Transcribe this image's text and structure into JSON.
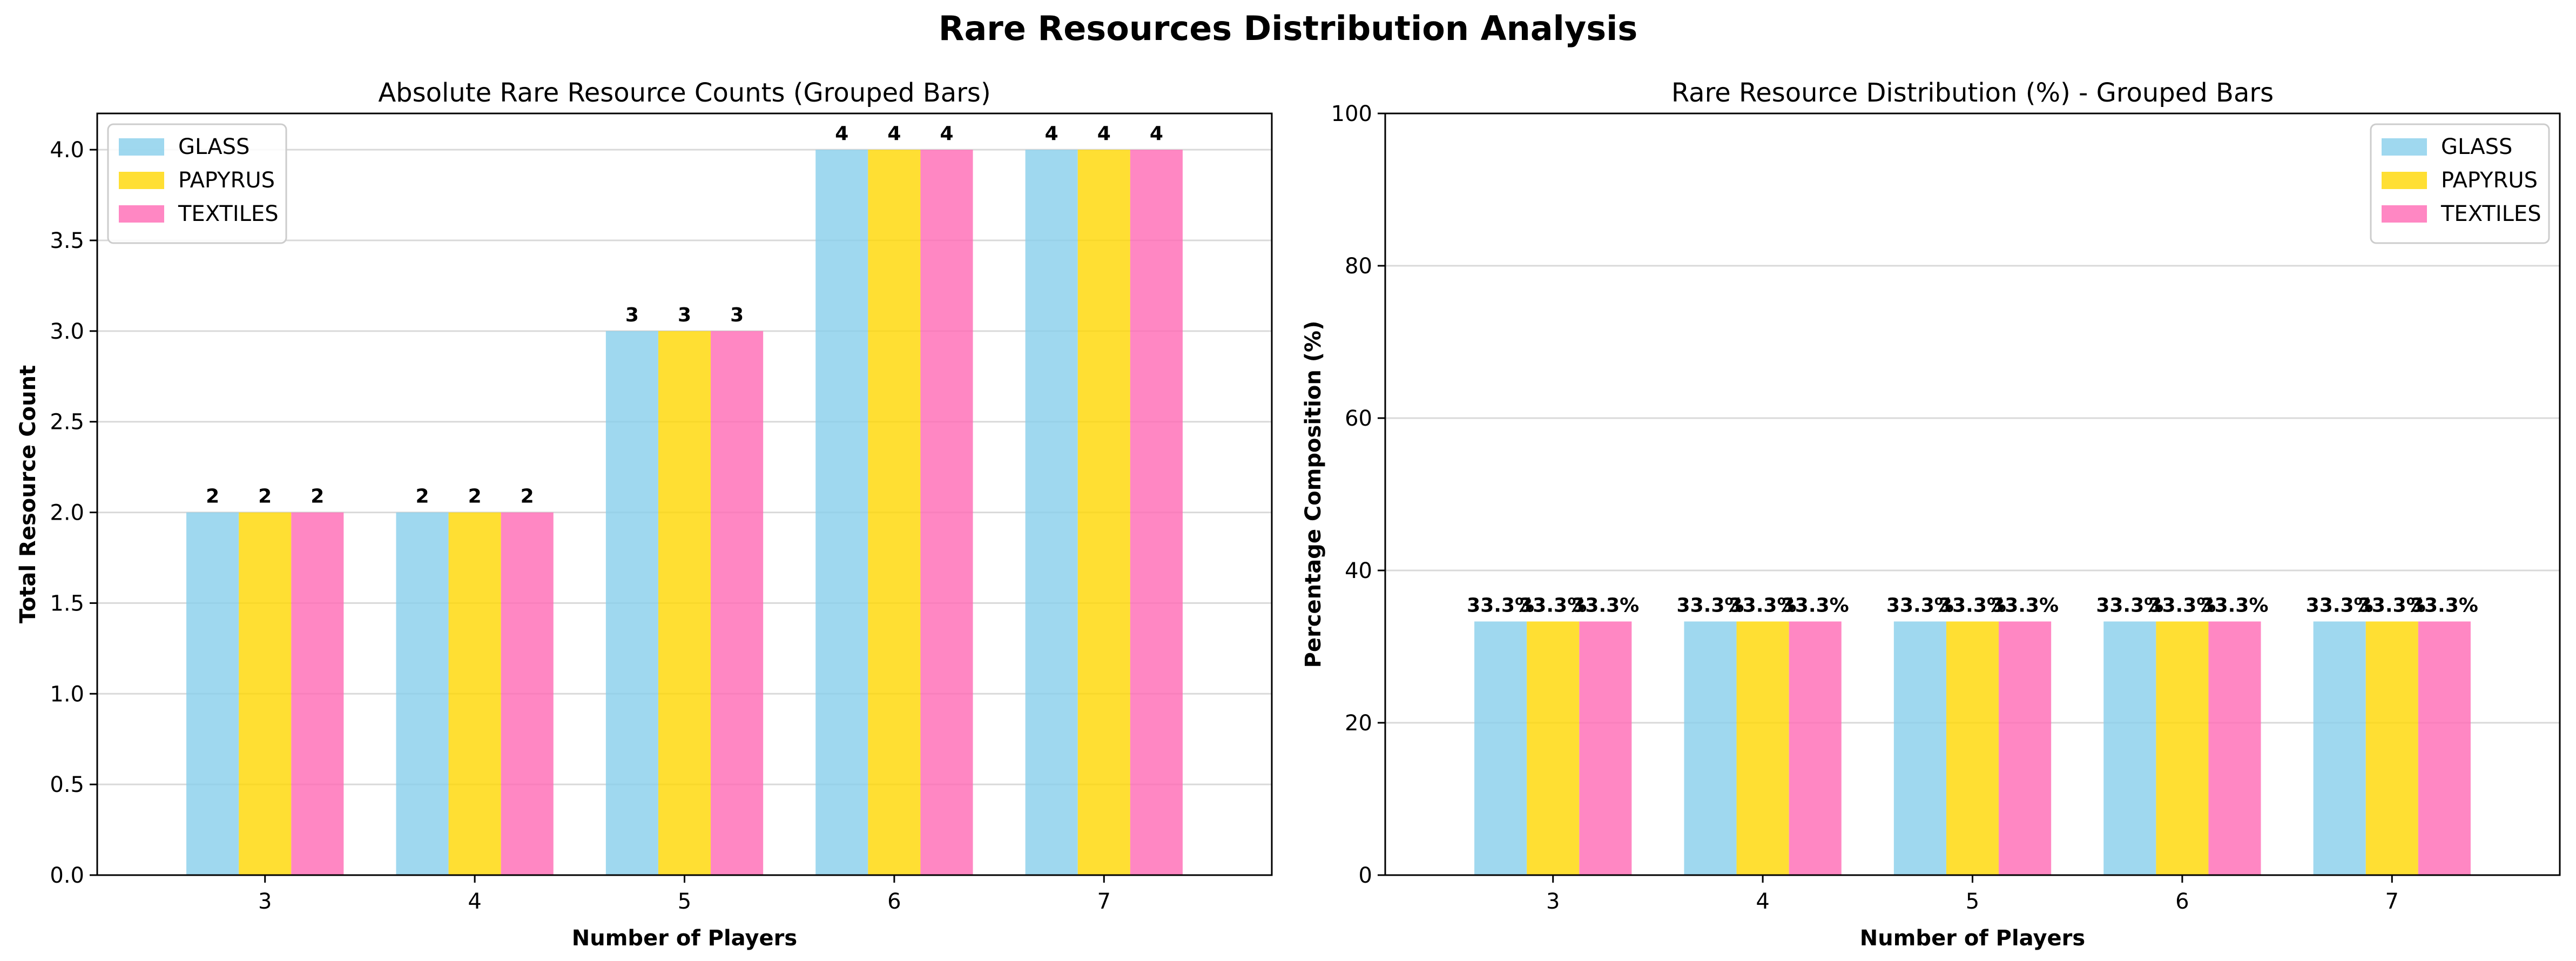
{
  "figure_title": "Rare Resources Distribution Analysis",
  "colors": {
    "GLASS": "#87CEEB",
    "PAPYRUS": "#FFD700",
    "TEXTILES": "#FF69B4"
  },
  "chart_data": [
    {
      "type": "bar",
      "title": "Absolute Rare Resource Counts (Grouped Bars)",
      "xlabel": "Number of Players",
      "ylabel": "Total Resource Count",
      "categories": [
        "3",
        "4",
        "5",
        "6",
        "7"
      ],
      "series": [
        {
          "name": "GLASS",
          "values": [
            2,
            2,
            3,
            4,
            4
          ]
        },
        {
          "name": "PAPYRUS",
          "values": [
            2,
            2,
            3,
            4,
            4
          ]
        },
        {
          "name": "TEXTILES",
          "values": [
            2,
            2,
            3,
            4,
            4
          ]
        }
      ],
      "data_labels": [
        [
          "2",
          "2",
          "3",
          "4",
          "4"
        ],
        [
          "2",
          "2",
          "3",
          "4",
          "4"
        ],
        [
          "2",
          "2",
          "3",
          "4",
          "4"
        ]
      ],
      "ylim": [
        0,
        4.2
      ],
      "yticks": [
        "0.0",
        "0.5",
        "1.0",
        "1.5",
        "2.0",
        "2.5",
        "3.0",
        "3.5",
        "4.0"
      ],
      "grid": "y",
      "legend_position": "upper-left"
    },
    {
      "type": "bar",
      "title": "Rare Resource Distribution (%) - Grouped Bars",
      "xlabel": "Number of Players",
      "ylabel": "Percentage Composition (%)",
      "categories": [
        "3",
        "4",
        "5",
        "6",
        "7"
      ],
      "series": [
        {
          "name": "GLASS",
          "values": [
            33.3,
            33.3,
            33.3,
            33.3,
            33.3
          ]
        },
        {
          "name": "PAPYRUS",
          "values": [
            33.3,
            33.3,
            33.3,
            33.3,
            33.3
          ]
        },
        {
          "name": "TEXTILES",
          "values": [
            33.3,
            33.3,
            33.3,
            33.3,
            33.3
          ]
        }
      ],
      "data_labels": [
        [
          "33.3%",
          "33.3%",
          "33.3%",
          "33.3%",
          "33.3%"
        ],
        [
          "33.3%",
          "33.3%",
          "33.3%",
          "33.3%",
          "33.3%"
        ],
        [
          "33.3%",
          "33.3%",
          "33.3%",
          "33.3%",
          "33.3%"
        ]
      ],
      "ylim": [
        0,
        100
      ],
      "yticks": [
        "0",
        "20",
        "40",
        "60",
        "80",
        "100"
      ],
      "grid": "y",
      "legend_position": "upper-right"
    }
  ]
}
